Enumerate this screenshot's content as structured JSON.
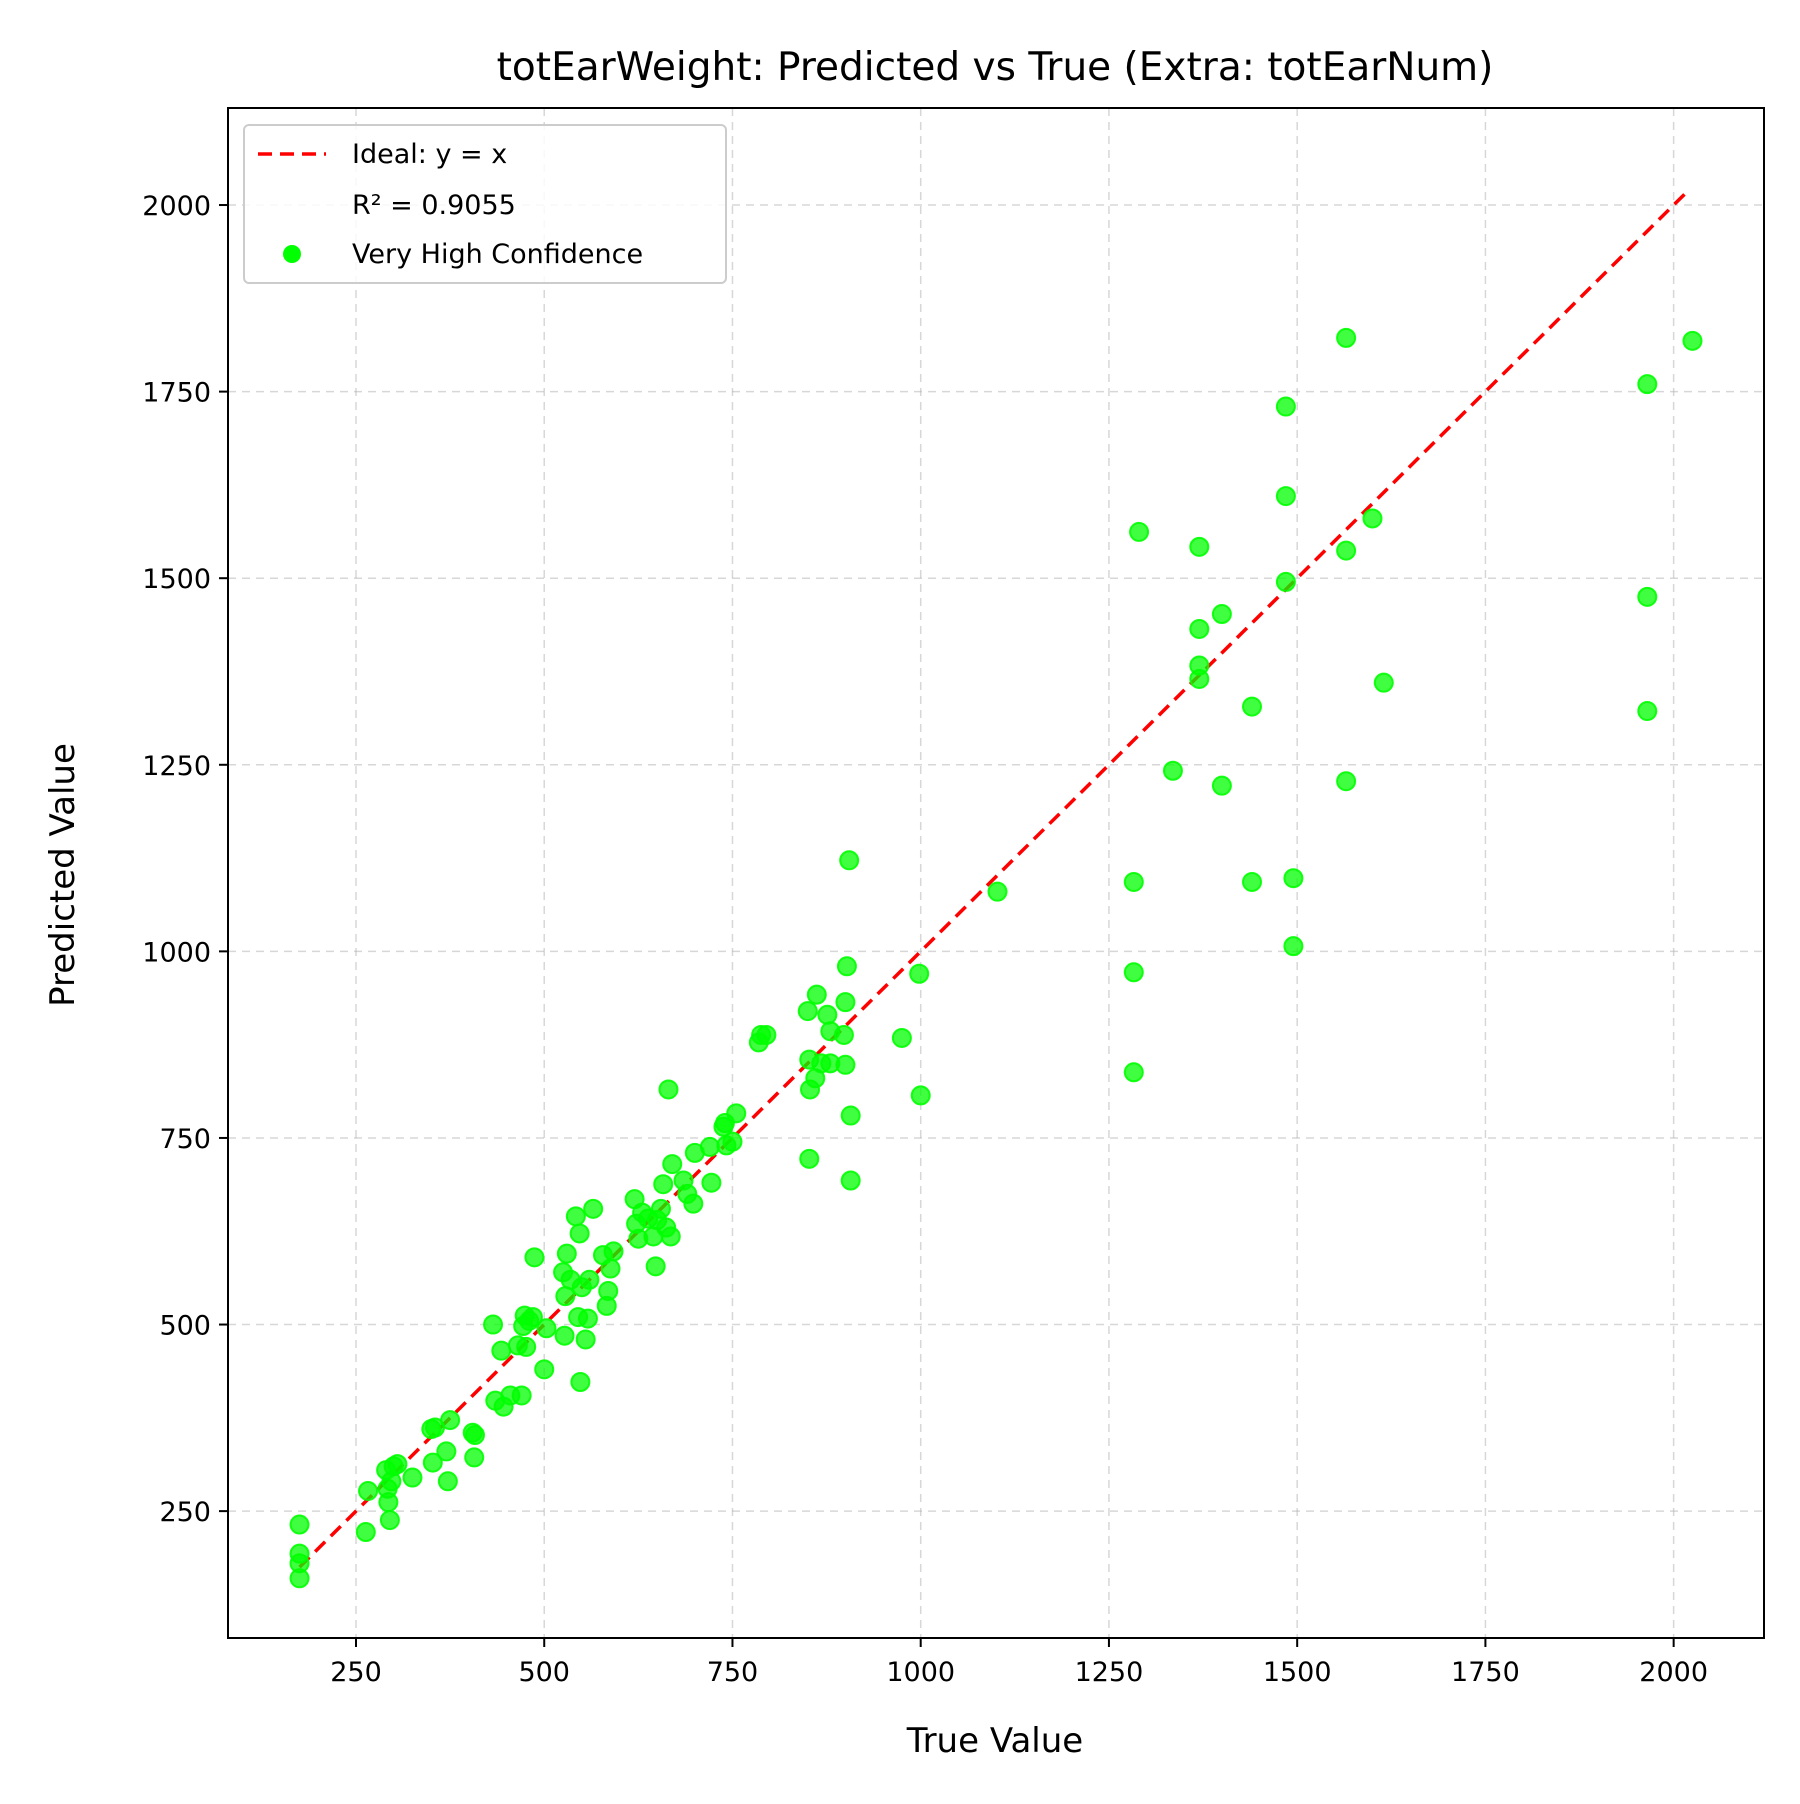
{
  "chart_data": {
    "type": "scatter",
    "title": "totEarWeight: Predicted vs True (Extra: totEarNum)",
    "xlabel": "True Value",
    "ylabel": "Predicted Value",
    "xlim": [
      80,
      2120
    ],
    "ylim": [
      80,
      2130
    ],
    "xticks": [
      250,
      500,
      750,
      1000,
      1250,
      1500,
      1750,
      2000
    ],
    "yticks": [
      250,
      500,
      750,
      1000,
      1250,
      1500,
      1750,
      2000
    ],
    "grid": true,
    "legend_position": "upper-left",
    "legend": [
      {
        "label": "Ideal: y = x",
        "marker": "dashed-line",
        "color": "#ff0000"
      },
      {
        "label": "R² = 0.9055",
        "marker": "none"
      },
      {
        "label": "Very High Confidence",
        "marker": "dot",
        "color": "#00ff00"
      }
    ],
    "ideal_line": {
      "name": "Ideal: y = x",
      "x": [
        175,
        2020
      ],
      "y": [
        175,
        2020
      ],
      "color": "#ff0000",
      "style": "dashed"
    },
    "annotation": "R² = 0.9055",
    "series": [
      {
        "name": "Very High Confidence",
        "color": "#00ff00",
        "points": [
          [
            175,
            232
          ],
          [
            175,
            193
          ],
          [
            175,
            180
          ],
          [
            175,
            160
          ],
          [
            263,
            222
          ],
          [
            266,
            277
          ],
          [
            290,
            305
          ],
          [
            292,
            280
          ],
          [
            293,
            262
          ],
          [
            295,
            238
          ],
          [
            297,
            290
          ],
          [
            300,
            310
          ],
          [
            305,
            313
          ],
          [
            325,
            295
          ],
          [
            350,
            360
          ],
          [
            352,
            315
          ],
          [
            355,
            362
          ],
          [
            370,
            330
          ],
          [
            372,
            290
          ],
          [
            375,
            372
          ],
          [
            405,
            355
          ],
          [
            407,
            322
          ],
          [
            408,
            352
          ],
          [
            432,
            500
          ],
          [
            435,
            398
          ],
          [
            443,
            465
          ],
          [
            446,
            390
          ],
          [
            455,
            405
          ],
          [
            465,
            472
          ],
          [
            470,
            405
          ],
          [
            472,
            498
          ],
          [
            474,
            512
          ],
          [
            476,
            470
          ],
          [
            480,
            505
          ],
          [
            485,
            510
          ],
          [
            487,
            590
          ],
          [
            500,
            440
          ],
          [
            503,
            495
          ],
          [
            525,
            570
          ],
          [
            527,
            485
          ],
          [
            528,
            538
          ],
          [
            530,
            595
          ],
          [
            535,
            560
          ],
          [
            542,
            645
          ],
          [
            545,
            510
          ],
          [
            547,
            622
          ],
          [
            548,
            423
          ],
          [
            550,
            550
          ],
          [
            555,
            480
          ],
          [
            558,
            508
          ],
          [
            560,
            560
          ],
          [
            565,
            655
          ],
          [
            578,
            593
          ],
          [
            583,
            525
          ],
          [
            585,
            545
          ],
          [
            588,
            575
          ],
          [
            592,
            598
          ],
          [
            620,
            668
          ],
          [
            622,
            635
          ],
          [
            625,
            615
          ],
          [
            630,
            650
          ],
          [
            638,
            642
          ],
          [
            645,
            618
          ],
          [
            648,
            578
          ],
          [
            650,
            640
          ],
          [
            655,
            655
          ],
          [
            658,
            688
          ],
          [
            662,
            630
          ],
          [
            665,
            815
          ],
          [
            668,
            618
          ],
          [
            670,
            715
          ],
          [
            685,
            693
          ],
          [
            690,
            675
          ],
          [
            698,
            662
          ],
          [
            700,
            730
          ],
          [
            720,
            738
          ],
          [
            722,
            690
          ],
          [
            738,
            765
          ],
          [
            740,
            770
          ],
          [
            742,
            740
          ],
          [
            750,
            745
          ],
          [
            755,
            783
          ],
          [
            785,
            878
          ],
          [
            788,
            888
          ],
          [
            795,
            888
          ],
          [
            850,
            920
          ],
          [
            852,
            722
          ],
          [
            852,
            855
          ],
          [
            853,
            815
          ],
          [
            860,
            830
          ],
          [
            862,
            942
          ],
          [
            868,
            850
          ],
          [
            876,
            915
          ],
          [
            880,
            893
          ],
          [
            880,
            850
          ],
          [
            898,
            888
          ],
          [
            900,
            932
          ],
          [
            900,
            848
          ],
          [
            902,
            980
          ],
          [
            905,
            1122
          ],
          [
            907,
            780
          ],
          [
            907,
            693
          ],
          [
            975,
            884
          ],
          [
            998,
            970
          ],
          [
            1000,
            807
          ],
          [
            1102,
            1080
          ],
          [
            1283,
            1093
          ],
          [
            1283,
            972
          ],
          [
            1283,
            838
          ],
          [
            1290,
            1562
          ],
          [
            1335,
            1242
          ],
          [
            1370,
            1542
          ],
          [
            1370,
            1432
          ],
          [
            1370,
            1383
          ],
          [
            1370,
            1365
          ],
          [
            1400,
            1452
          ],
          [
            1400,
            1222
          ],
          [
            1440,
            1328
          ],
          [
            1440,
            1093
          ],
          [
            1485,
            1730
          ],
          [
            1485,
            1610
          ],
          [
            1485,
            1495
          ],
          [
            1495,
            1098
          ],
          [
            1495,
            1007
          ],
          [
            1565,
            1822
          ],
          [
            1565,
            1537
          ],
          [
            1565,
            1228
          ],
          [
            1600,
            1580
          ],
          [
            1615,
            1360
          ],
          [
            1965,
            1760
          ],
          [
            1965,
            1475
          ],
          [
            1965,
            1322
          ],
          [
            2025,
            1818
          ]
        ]
      }
    ]
  }
}
